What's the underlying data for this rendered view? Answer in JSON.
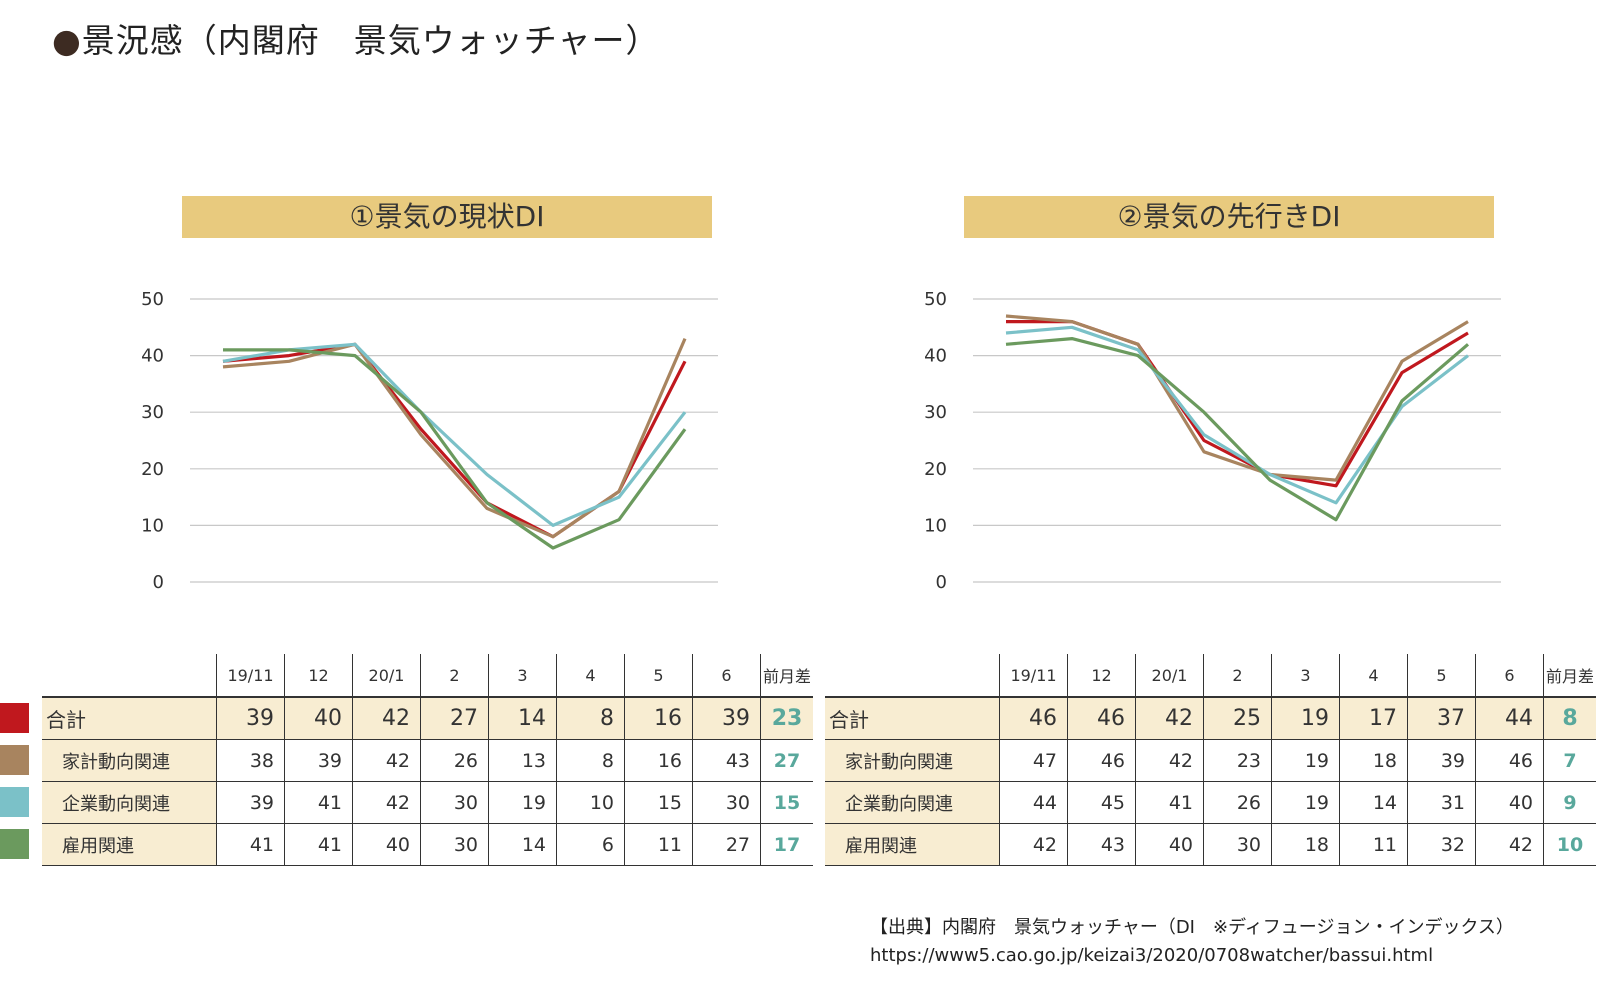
{
  "page": {
    "title_dot": "●",
    "title": "景況感（内閣府　景気ウォッチャー）"
  },
  "chart_data": [
    {
      "type": "line",
      "title": "①景気の現状DI",
      "x": [
        "19/11",
        "12",
        "20/1",
        "2",
        "3",
        "4",
        "5",
        "6"
      ],
      "ylim": [
        0,
        50
      ],
      "yticks": [
        0,
        10,
        20,
        30,
        40,
        50
      ],
      "grid": true,
      "series": [
        {
          "name": "合計",
          "color": "#c0181e",
          "values": [
            39,
            40,
            42,
            27,
            14,
            8,
            16,
            39
          ]
        },
        {
          "name": "家計動向関連",
          "color": "#a8845f",
          "values": [
            38,
            39,
            42,
            26,
            13,
            8,
            16,
            43
          ]
        },
        {
          "name": "企業動向関連",
          "color": "#7bc1c8",
          "values": [
            39,
            41,
            42,
            30,
            19,
            10,
            15,
            30
          ]
        },
        {
          "name": "雇用関連",
          "color": "#6b9a5e",
          "values": [
            41,
            41,
            40,
            30,
            14,
            6,
            11,
            27
          ]
        }
      ]
    },
    {
      "type": "line",
      "title": "②景気の先行きDI",
      "x": [
        "19/11",
        "12",
        "20/1",
        "2",
        "3",
        "4",
        "5",
        "6"
      ],
      "ylim": [
        0,
        50
      ],
      "yticks": [
        0,
        10,
        20,
        30,
        40,
        50
      ],
      "grid": true,
      "series": [
        {
          "name": "合計",
          "color": "#c0181e",
          "values": [
            46,
            46,
            42,
            25,
            19,
            17,
            37,
            44
          ]
        },
        {
          "name": "家計動向関連",
          "color": "#a8845f",
          "values": [
            47,
            46,
            42,
            23,
            19,
            18,
            39,
            46
          ]
        },
        {
          "name": "企業動向関連",
          "color": "#7bc1c8",
          "values": [
            44,
            45,
            41,
            26,
            19,
            14,
            31,
            40
          ]
        },
        {
          "name": "雇用関連",
          "color": "#6b9a5e",
          "values": [
            42,
            43,
            40,
            30,
            18,
            11,
            32,
            42
          ]
        }
      ]
    }
  ],
  "tables": [
    {
      "headers": [
        "19/11",
        "12",
        "20/1",
        "2",
        "3",
        "4",
        "5",
        "6"
      ],
      "diff_header": "前月差",
      "rows": [
        {
          "label": "合計",
          "values": [
            "39",
            "40",
            "42",
            "27",
            "14",
            "8",
            "16",
            "39"
          ],
          "diff": "23"
        },
        {
          "label": "家計動向関連",
          "values": [
            "38",
            "39",
            "42",
            "26",
            "13",
            "8",
            "16",
            "43"
          ],
          "diff": "27"
        },
        {
          "label": "企業動向関連",
          "values": [
            "39",
            "41",
            "42",
            "30",
            "19",
            "10",
            "15",
            "30"
          ],
          "diff": "15"
        },
        {
          "label": "雇用関連",
          "values": [
            "41",
            "41",
            "40",
            "30",
            "14",
            "6",
            "11",
            "27"
          ],
          "diff": "17"
        }
      ]
    },
    {
      "headers": [
        "19/11",
        "12",
        "20/1",
        "2",
        "3",
        "4",
        "5",
        "6"
      ],
      "diff_header": "前月差",
      "rows": [
        {
          "label": "合計",
          "values": [
            "46",
            "46",
            "42",
            "25",
            "19",
            "17",
            "37",
            "44"
          ],
          "diff": "8"
        },
        {
          "label": "家計動向関連",
          "values": [
            "47",
            "46",
            "42",
            "23",
            "19",
            "18",
            "39",
            "46"
          ],
          "diff": "7"
        },
        {
          "label": "企業動向関連",
          "values": [
            "44",
            "45",
            "41",
            "26",
            "19",
            "14",
            "31",
            "40"
          ],
          "diff": "9"
        },
        {
          "label": "雇用関連",
          "values": [
            "42",
            "43",
            "40",
            "30",
            "18",
            "11",
            "32",
            "42"
          ],
          "diff": "10"
        }
      ]
    }
  ],
  "legend": {
    "colors": [
      "#c0181e",
      "#a8845f",
      "#7bc1c8",
      "#6b9a5e"
    ]
  },
  "source": {
    "line1": "【出典】内閣府　景気ウォッチャー（DI　※ディフュージョン・インデックス）",
    "line2": "https://www5.cao.go.jp/keizai3/2020/0708watcher/bassui.html"
  }
}
